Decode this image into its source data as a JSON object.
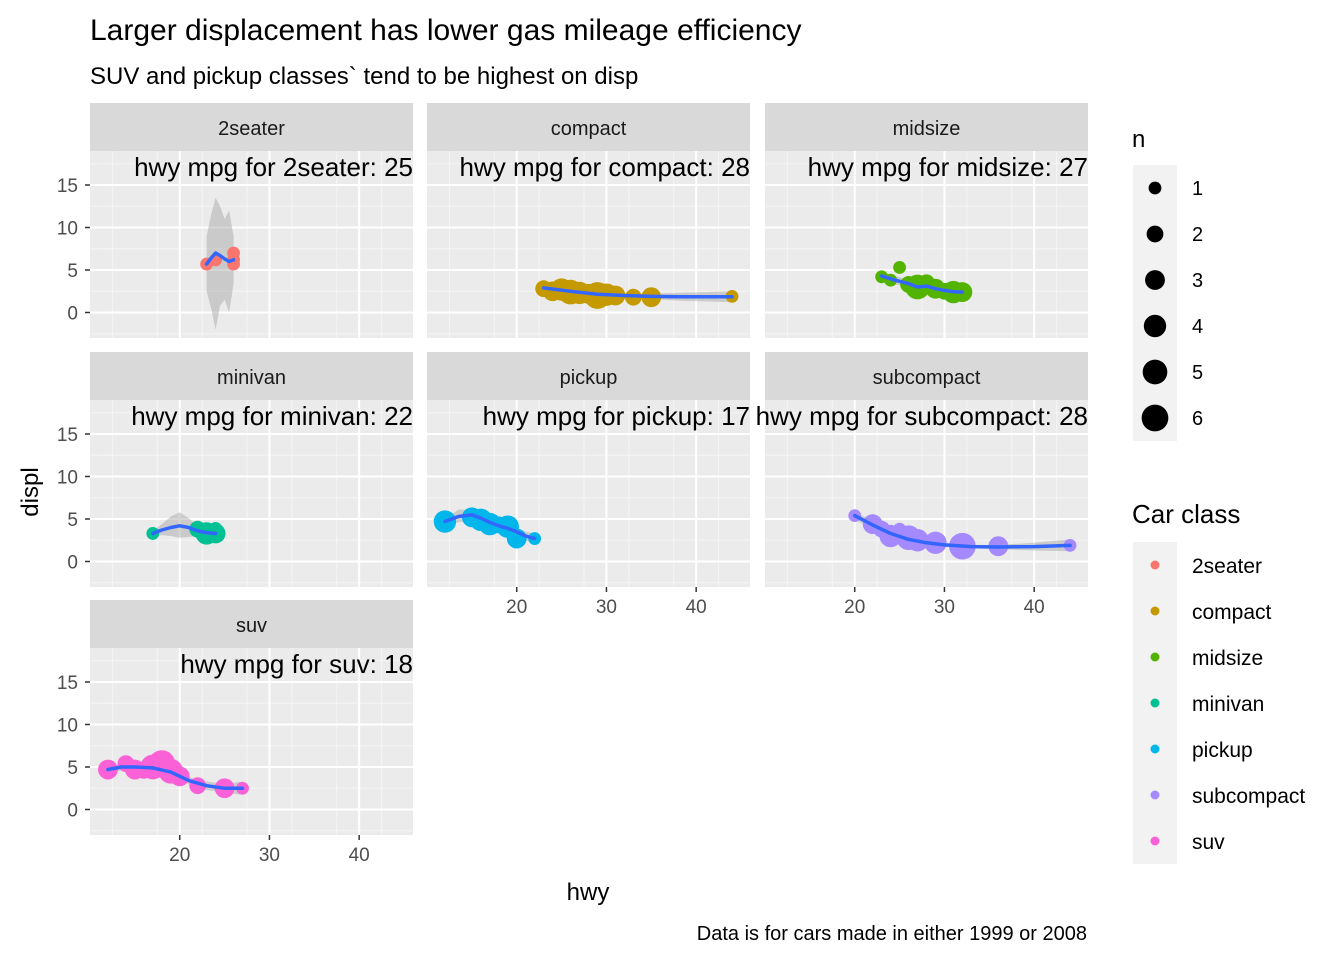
{
  "chart_data": {
    "type": "scatter",
    "title": "Larger displacement has lower gas mileage efficiency",
    "subtitle": "SUV and pickup classes` tend to be highest on disp",
    "caption": "Data is for cars made in either 1999 or 2008",
    "xlabel": "hwy",
    "ylabel": "displ",
    "xlim": [
      10,
      46
    ],
    "ylim": [
      -3,
      19
    ],
    "x_ticks": [
      20,
      30,
      40
    ],
    "y_ticks": [
      0,
      5,
      10,
      15
    ],
    "grid": true,
    "facets": [
      {
        "name": "2seater",
        "annotation": "hwy mpg for 2seater: 25",
        "color": "#F8766D",
        "points": [
          [
            23,
            5.7,
            1
          ],
          [
            24,
            6.2,
            1
          ],
          [
            26,
            6.2,
            1
          ],
          [
            26,
            7.0,
            1
          ],
          [
            26,
            5.7,
            1
          ]
        ],
        "smooth": [
          [
            23,
            5.7
          ],
          [
            23.5,
            6.4
          ],
          [
            24,
            7.0
          ],
          [
            24.5,
            6.7
          ],
          [
            25,
            6.3
          ],
          [
            25.5,
            6.0
          ],
          [
            26,
            6.2
          ]
        ],
        "band_upper": [
          [
            23,
            9.0
          ],
          [
            23.5,
            11.5
          ],
          [
            24,
            13.5
          ],
          [
            24.5,
            12.5
          ],
          [
            25,
            11.0
          ],
          [
            25.5,
            12.0
          ],
          [
            26,
            9.0
          ]
        ],
        "band_lower": [
          [
            23,
            2.5
          ],
          [
            23.5,
            0.5
          ],
          [
            24,
            -2.0
          ],
          [
            24.5,
            0.8
          ],
          [
            25,
            1.5
          ],
          [
            25.5,
            0.0
          ],
          [
            26,
            3.4
          ]
        ]
      },
      {
        "name": "compact",
        "annotation": "hwy mpg for compact: 28",
        "color": "#C49A00",
        "points": [
          [
            23,
            2.8,
            2
          ],
          [
            24,
            2.5,
            3
          ],
          [
            25,
            2.7,
            4
          ],
          [
            26,
            2.4,
            5
          ],
          [
            27,
            2.3,
            4
          ],
          [
            28,
            2.2,
            3
          ],
          [
            29,
            2.0,
            6
          ],
          [
            30,
            2.1,
            4
          ],
          [
            31,
            2.0,
            3
          ],
          [
            33,
            1.8,
            2
          ],
          [
            35,
            1.8,
            3
          ],
          [
            44,
            1.9,
            1
          ]
        ],
        "smooth": [
          [
            23,
            2.9
          ],
          [
            26,
            2.5
          ],
          [
            29,
            2.15
          ],
          [
            32,
            2.0
          ],
          [
            35,
            1.9
          ],
          [
            38,
            1.85
          ],
          [
            41,
            1.85
          ],
          [
            44,
            1.85
          ]
        ],
        "band_upper": [
          [
            23,
            3.2
          ],
          [
            26,
            2.7
          ],
          [
            29,
            2.3
          ],
          [
            32,
            2.2
          ],
          [
            35,
            2.2
          ],
          [
            38,
            2.3
          ],
          [
            41,
            2.4
          ],
          [
            44,
            2.5
          ]
        ],
        "band_lower": [
          [
            23,
            2.6
          ],
          [
            26,
            2.3
          ],
          [
            29,
            2.0
          ],
          [
            32,
            1.8
          ],
          [
            35,
            1.6
          ],
          [
            38,
            1.4
          ],
          [
            41,
            1.3
          ],
          [
            44,
            1.2
          ]
        ]
      },
      {
        "name": "midsize",
        "annotation": "hwy mpg for midsize: 27",
        "color": "#53B400",
        "points": [
          [
            23,
            4.2,
            1
          ],
          [
            24,
            3.8,
            1
          ],
          [
            25,
            5.3,
            1
          ],
          [
            26,
            3.3,
            2
          ],
          [
            27,
            3.0,
            5
          ],
          [
            28,
            3.5,
            2
          ],
          [
            29,
            2.8,
            3
          ],
          [
            30,
            2.5,
            2
          ],
          [
            31,
            2.4,
            4
          ],
          [
            32,
            2.4,
            3
          ]
        ],
        "smooth": [
          [
            23,
            4.3
          ],
          [
            24.5,
            3.8
          ],
          [
            26,
            3.4
          ],
          [
            27,
            3.0
          ],
          [
            28,
            3.1
          ],
          [
            29,
            2.8
          ],
          [
            30,
            2.6
          ],
          [
            31,
            2.45
          ],
          [
            32,
            2.4
          ]
        ],
        "band_upper": [
          [
            23,
            4.8
          ],
          [
            24.5,
            4.3
          ],
          [
            26,
            3.8
          ],
          [
            27,
            3.4
          ],
          [
            28,
            3.5
          ],
          [
            29,
            3.2
          ],
          [
            30,
            3.0
          ],
          [
            31,
            2.85
          ],
          [
            32,
            2.9
          ]
        ],
        "band_lower": [
          [
            23,
            3.8
          ],
          [
            24.5,
            3.3
          ],
          [
            26,
            3.0
          ],
          [
            27,
            2.6
          ],
          [
            28,
            2.7
          ],
          [
            29,
            2.4
          ],
          [
            30,
            2.2
          ],
          [
            31,
            2.05
          ],
          [
            32,
            1.9
          ]
        ]
      },
      {
        "name": "minivan",
        "annotation": "hwy mpg for minivan: 22",
        "color": "#00C094",
        "points": [
          [
            17,
            3.3,
            1
          ],
          [
            22,
            3.8,
            2
          ],
          [
            23,
            3.3,
            4
          ],
          [
            24,
            3.3,
            3
          ],
          [
            24,
            3.9,
            1
          ]
        ],
        "smooth": [
          [
            17,
            3.3
          ],
          [
            18,
            3.7
          ],
          [
            19,
            4.0
          ],
          [
            20,
            4.2
          ],
          [
            21,
            4.0
          ],
          [
            22,
            3.6
          ],
          [
            23,
            3.4
          ],
          [
            24,
            3.3
          ]
        ],
        "band_upper": [
          [
            17,
            3.6
          ],
          [
            18,
            4.4
          ],
          [
            19,
            5.3
          ],
          [
            20,
            5.8
          ],
          [
            21,
            5.1
          ],
          [
            22,
            4.2
          ],
          [
            23,
            3.8
          ],
          [
            24,
            3.8
          ]
        ],
        "band_lower": [
          [
            17,
            3.0
          ],
          [
            18,
            3.1
          ],
          [
            19,
            3.0
          ],
          [
            20,
            2.8
          ],
          [
            21,
            2.9
          ],
          [
            22,
            3.0
          ],
          [
            23,
            3.0
          ],
          [
            24,
            2.8
          ]
        ]
      },
      {
        "name": "pickup",
        "annotation": "hwy mpg for pickup: 17",
        "color": "#00B6EB",
        "points": [
          [
            12,
            4.7,
            4
          ],
          [
            15,
            5.2,
            3
          ],
          [
            16,
            4.9,
            4
          ],
          [
            17,
            4.4,
            4
          ],
          [
            18,
            4.3,
            2
          ],
          [
            19,
            4.1,
            4
          ],
          [
            20,
            2.7,
            3
          ],
          [
            22,
            2.7,
            1
          ]
        ],
        "smooth": [
          [
            12,
            4.7
          ],
          [
            13.5,
            5.3
          ],
          [
            15,
            5.5
          ],
          [
            16,
            5.1
          ],
          [
            17,
            4.6
          ],
          [
            18,
            4.2
          ],
          [
            19,
            3.9
          ],
          [
            20,
            3.5
          ],
          [
            21,
            3.0
          ],
          [
            22,
            2.7
          ]
        ],
        "band_upper": [
          [
            12,
            5.0
          ],
          [
            13.5,
            6.1
          ],
          [
            15,
            6.1
          ],
          [
            16,
            5.6
          ],
          [
            17,
            5.1
          ],
          [
            18,
            4.6
          ],
          [
            19,
            4.3
          ],
          [
            20,
            3.9
          ],
          [
            21,
            3.5
          ],
          [
            22,
            3.3
          ]
        ],
        "band_lower": [
          [
            12,
            4.4
          ],
          [
            13.5,
            4.6
          ],
          [
            15,
            4.9
          ],
          [
            16,
            4.6
          ],
          [
            17,
            4.1
          ],
          [
            18,
            3.8
          ],
          [
            19,
            3.5
          ],
          [
            20,
            3.1
          ],
          [
            21,
            2.5
          ],
          [
            22,
            2.1
          ]
        ]
      },
      {
        "name": "subcompact",
        "annotation": "hwy mpg for subcompact: 28",
        "color": "#A58AFF",
        "points": [
          [
            20,
            5.4,
            1
          ],
          [
            22,
            4.4,
            3
          ],
          [
            23,
            3.8,
            2
          ],
          [
            24,
            3.0,
            4
          ],
          [
            25,
            3.8,
            1
          ],
          [
            26,
            2.8,
            5
          ],
          [
            27,
            2.5,
            4
          ],
          [
            29,
            2.2,
            4
          ],
          [
            32,
            1.8,
            6
          ],
          [
            36,
            1.8,
            3
          ],
          [
            44,
            1.9,
            1
          ]
        ],
        "smooth": [
          [
            20,
            5.4
          ],
          [
            22,
            4.3
          ],
          [
            24,
            3.3
          ],
          [
            26,
            2.6
          ],
          [
            28,
            2.2
          ],
          [
            30,
            1.95
          ],
          [
            33,
            1.75
          ],
          [
            36,
            1.7
          ],
          [
            40,
            1.75
          ],
          [
            44,
            1.9
          ]
        ],
        "band_upper": [
          [
            20,
            5.9
          ],
          [
            22,
            4.7
          ],
          [
            24,
            3.6
          ],
          [
            26,
            2.9
          ],
          [
            28,
            2.4
          ],
          [
            30,
            2.15
          ],
          [
            33,
            1.95
          ],
          [
            36,
            1.95
          ],
          [
            40,
            2.2
          ],
          [
            44,
            2.6
          ]
        ],
        "band_lower": [
          [
            20,
            4.9
          ],
          [
            22,
            3.9
          ],
          [
            24,
            3.0
          ],
          [
            26,
            2.3
          ],
          [
            28,
            2.0
          ],
          [
            30,
            1.75
          ],
          [
            33,
            1.55
          ],
          [
            36,
            1.45
          ],
          [
            40,
            1.3
          ],
          [
            44,
            1.2
          ]
        ]
      },
      {
        "name": "suv",
        "annotation": "hwy mpg for suv: 18",
        "color": "#FB61D7",
        "points": [
          [
            12,
            4.7,
            3
          ],
          [
            14,
            5.4,
            2
          ],
          [
            15,
            4.7,
            3
          ],
          [
            16,
            4.6,
            2
          ],
          [
            17,
            5.0,
            5
          ],
          [
            18,
            5.4,
            6
          ],
          [
            19,
            4.5,
            5
          ],
          [
            20,
            3.9,
            3
          ],
          [
            22,
            2.8,
            2
          ],
          [
            25,
            2.5,
            3
          ],
          [
            27,
            2.5,
            1
          ]
        ],
        "smooth": [
          [
            12,
            4.7
          ],
          [
            13.5,
            5.0
          ],
          [
            15,
            5.0
          ],
          [
            17,
            4.9
          ],
          [
            19,
            4.4
          ],
          [
            21,
            3.4
          ],
          [
            23,
            2.8
          ],
          [
            25,
            2.5
          ],
          [
            27,
            2.5
          ]
        ],
        "band_upper": [
          [
            12,
            5.1
          ],
          [
            13.5,
            5.4
          ],
          [
            15,
            5.3
          ],
          [
            17,
            5.2
          ],
          [
            19,
            4.7
          ],
          [
            21,
            3.8
          ],
          [
            23,
            3.3
          ],
          [
            25,
            3.0
          ],
          [
            27,
            3.3
          ]
        ],
        "band_lower": [
          [
            12,
            4.3
          ],
          [
            13.5,
            4.6
          ],
          [
            15,
            4.7
          ],
          [
            17,
            4.6
          ],
          [
            19,
            4.1
          ],
          [
            21,
            3.0
          ],
          [
            23,
            2.3
          ],
          [
            25,
            2.0
          ],
          [
            27,
            1.7
          ]
        ]
      }
    ],
    "legend_size": {
      "title": "n",
      "entries": [
        {
          "label": "1",
          "value": 1
        },
        {
          "label": "2",
          "value": 2
        },
        {
          "label": "3",
          "value": 3
        },
        {
          "label": "4",
          "value": 4
        },
        {
          "label": "5",
          "value": 5
        },
        {
          "label": "6",
          "value": 6
        }
      ]
    },
    "legend_color": {
      "title": "Car class",
      "entries": [
        {
          "label": "2seater",
          "color": "#F8766D"
        },
        {
          "label": "compact",
          "color": "#C49A00"
        },
        {
          "label": "midsize",
          "color": "#53B400"
        },
        {
          "label": "minivan",
          "color": "#00C094"
        },
        {
          "label": "pickup",
          "color": "#00B6EB"
        },
        {
          "label": "subcompact",
          "color": "#A58AFF"
        },
        {
          "label": "suv",
          "color": "#FB61D7"
        }
      ]
    },
    "smooth_color": "#3366FF"
  }
}
